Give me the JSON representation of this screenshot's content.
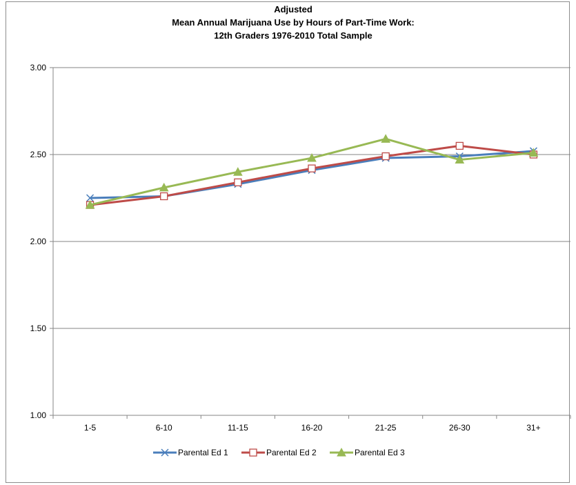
{
  "chart_data": {
    "type": "line",
    "title_lines": [
      "Adjusted",
      "Mean Annual Marijuana Use by Hours of Part-Time Work:",
      "12th Graders   1976-2010   Total Sample"
    ],
    "categories": [
      "1-5",
      "6-10",
      "11-15",
      "16-20",
      "21-25",
      "26-30",
      "31+"
    ],
    "ylim": [
      1.0,
      3.0
    ],
    "yticks": [
      "1.00",
      "1.50",
      "2.00",
      "2.50",
      "3.00"
    ],
    "ytick_values": [
      1.0,
      1.5,
      2.0,
      2.5,
      3.0
    ],
    "grid": true,
    "legend_position": "bottom",
    "series": [
      {
        "name": "Parental  Ed 1",
        "color": "#4a7ebb",
        "marker": "x",
        "values": [
          2.25,
          2.26,
          2.33,
          2.41,
          2.48,
          2.49,
          2.52
        ]
      },
      {
        "name": "Parental  Ed 2",
        "color": "#be4b48",
        "marker": "square",
        "values": [
          2.21,
          2.26,
          2.34,
          2.42,
          2.49,
          2.55,
          2.5
        ]
      },
      {
        "name": "Parental  Ed 3",
        "color": "#98b954",
        "marker": "triangle",
        "values": [
          2.21,
          2.31,
          2.4,
          2.48,
          2.59,
          2.47,
          2.51
        ]
      }
    ]
  }
}
